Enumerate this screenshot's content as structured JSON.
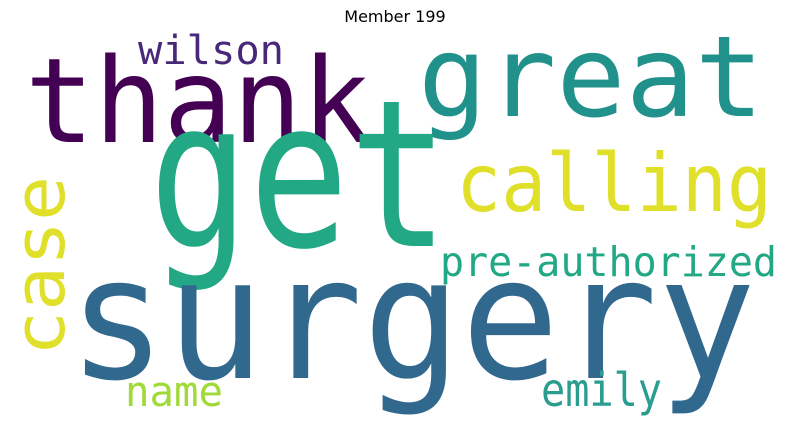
{
  "title": "Member 199",
  "words": [
    {
      "key": "get",
      "text": "get",
      "color": "#22a884"
    },
    {
      "key": "surgery",
      "text": "surgery",
      "color": "#31688e"
    },
    {
      "key": "thank",
      "text": "thank",
      "color": "#440154"
    },
    {
      "key": "great",
      "text": "great",
      "color": "#21918c"
    },
    {
      "key": "calling",
      "text": "calling",
      "color": "#e0e02a"
    },
    {
      "key": "case",
      "text": "case",
      "color": "#e0e02a"
    },
    {
      "key": "pre-authorized",
      "text": "pre-authorized",
      "color": "#22a884"
    },
    {
      "key": "wilson",
      "text": "wilson",
      "color": "#482878"
    },
    {
      "key": "name",
      "text": "name",
      "color": "#a0da39"
    },
    {
      "key": "emily",
      "text": "emily",
      "color": "#2a9d8f"
    }
  ]
}
